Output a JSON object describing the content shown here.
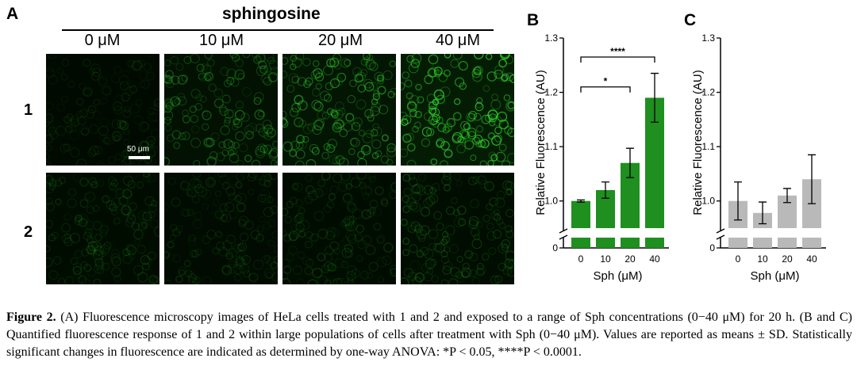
{
  "panel_a": {
    "letter": "A",
    "header": "sphingosine",
    "concentrations": [
      "0 μM",
      "10 μM",
      "20 μM",
      "40 μM"
    ],
    "rows": [
      "1",
      "2"
    ],
    "scale_bar_label": "50 μm",
    "colors": {
      "background": "#010800",
      "fluor": "#2fd12a"
    },
    "row1_intensity": [
      0.12,
      0.38,
      0.55,
      0.85
    ],
    "row2_intensity": [
      0.18,
      0.16,
      0.18,
      0.24
    ]
  },
  "chart_data": [
    {
      "panel": "B",
      "type": "bar",
      "categories": [
        "0",
        "10",
        "20",
        "40"
      ],
      "values": [
        1.0,
        1.02,
        1.07,
        1.19
      ],
      "errors": [
        0.002,
        0.015,
        0.027,
        0.045
      ],
      "xlabel": "Sph (μM)",
      "ylabel": "Relative Fluorescence (AU)",
      "ylim": [
        0.95,
        1.3
      ],
      "yticks": [
        "1.0",
        "1.1",
        "1.2",
        "1.3"
      ],
      "ytick_values": [
        1.0,
        1.1,
        1.2,
        1.3
      ],
      "zero_tick": "0",
      "bar_color": "#1f8f1f",
      "significance": [
        {
          "from": 0,
          "to": 2,
          "label": "*",
          "y": 1.21
        },
        {
          "from": 0,
          "to": 3,
          "label": "****",
          "y": 1.265
        }
      ]
    },
    {
      "panel": "C",
      "type": "bar",
      "categories": [
        "0",
        "10",
        "20",
        "40"
      ],
      "values": [
        1.0,
        0.978,
        1.01,
        1.04
      ],
      "errors": [
        0.035,
        0.02,
        0.013,
        0.045
      ],
      "xlabel": "Sph (μM)",
      "ylabel": "Relative Fluorescence (AU)",
      "ylim": [
        0.95,
        1.3
      ],
      "yticks": [
        "1.0",
        "1.1",
        "1.2",
        "1.3"
      ],
      "ytick_values": [
        1.0,
        1.1,
        1.2,
        1.3
      ],
      "zero_tick": "0",
      "bar_color": "#b9b9b9",
      "significance": []
    }
  ],
  "caption": {
    "label": "Figure 2.",
    "text": " (A) Fluorescence microscopy images of HeLa cells treated with 1 and 2 and exposed to a range of Sph concentrations (0−40 μM) for 20 h. (B and C) Quantified fluorescence response of 1 and 2 within large populations of cells after treatment with Sph (0−40 μM). Values are reported as means ± SD. Statistically significant changes in fluorescence are indicated as determined by one-way ANOVA: *P < 0.05, ****P < 0.0001."
  }
}
